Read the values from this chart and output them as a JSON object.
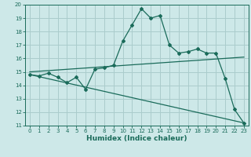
{
  "xlabel": "Humidex (Indice chaleur)",
  "bg_color": "#cde8e8",
  "grid_color": "#aacccc",
  "line_color": "#1a6b5a",
  "xlim": [
    -0.5,
    23.5
  ],
  "ylim": [
    11,
    20
  ],
  "xticks": [
    0,
    1,
    2,
    3,
    4,
    5,
    6,
    7,
    8,
    9,
    10,
    11,
    12,
    13,
    14,
    15,
    16,
    17,
    18,
    19,
    20,
    21,
    22,
    23
  ],
  "yticks": [
    11,
    12,
    13,
    14,
    15,
    16,
    17,
    18,
    19,
    20
  ],
  "line1_x": [
    0,
    1,
    2,
    3,
    4,
    5,
    6,
    7,
    8,
    9,
    10,
    11,
    12,
    13,
    14,
    15,
    16,
    17,
    18,
    19,
    20,
    21,
    22,
    23
  ],
  "line1_y": [
    14.8,
    14.7,
    14.9,
    14.6,
    14.2,
    14.6,
    13.7,
    15.2,
    15.3,
    15.5,
    17.3,
    18.5,
    19.7,
    19.0,
    19.2,
    17.0,
    16.4,
    16.5,
    16.7,
    16.4,
    16.4,
    14.5,
    12.2,
    11.2
  ],
  "line2_x": [
    0,
    23
  ],
  "line2_y": [
    15.0,
    16.1
  ],
  "line3_x": [
    0,
    23
  ],
  "line3_y": [
    14.8,
    11.2
  ],
  "tick_fontsize": 5.0,
  "xlabel_fontsize": 6.5
}
